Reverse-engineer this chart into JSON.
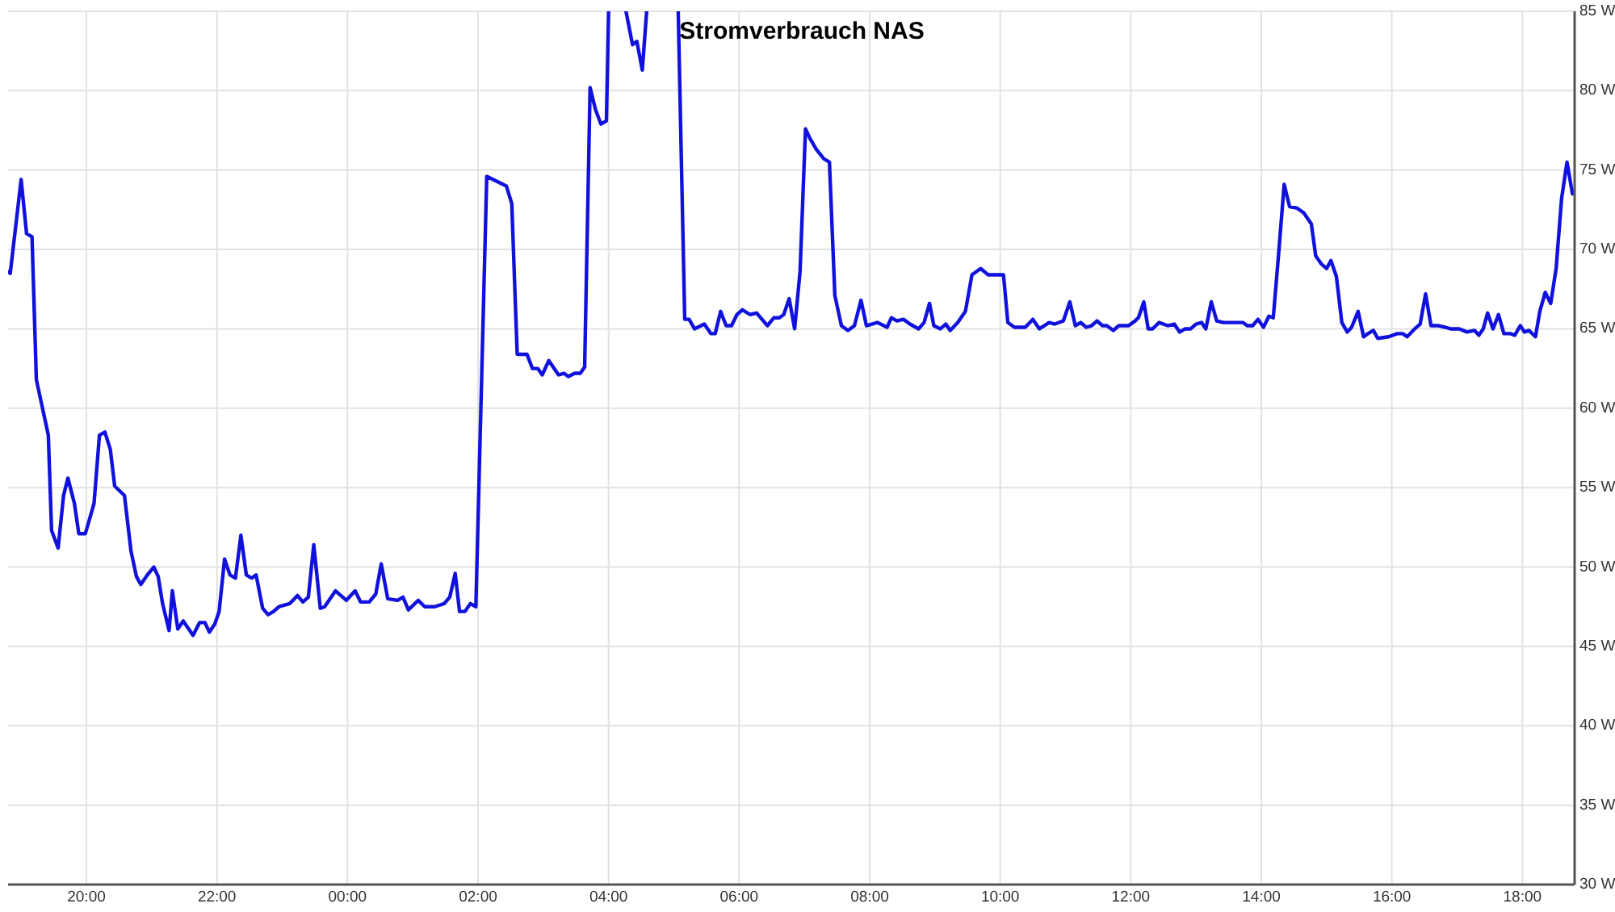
{
  "chart_data": {
    "type": "line",
    "title": "Stromverbrauch NAS",
    "x": [
      "--01-01T18:48",
      "--01-01T18:50",
      "--01-01T19:00",
      "--01-01T19:05",
      "--01-01T19:10",
      "--01-01T19:14",
      "--01-01T19:25",
      "--01-01T19:28",
      "--01-01T19:34",
      "--01-01T19:39",
      "--01-01T19:43",
      "--01-01T19:49",
      "--01-01T19:53",
      "--01-01T19:59",
      "--01-01T20:02",
      "--01-01T20:07",
      "--01-01T20:12",
      "--01-01T20:17",
      "--01-01T20:22",
      "--01-01T20:26",
      "--01-01T20:35",
      "--01-01T20:41",
      "--01-01T20:46",
      "--01-01T20:50",
      "--01-01T20:56",
      "--01-01T21:02",
      "--01-01T21:06",
      "--01-01T21:10",
      "--01-01T21:16",
      "--01-01T21:19",
      "--01-01T21:24",
      "--01-01T21:29",
      "--01-01T21:34",
      "--01-01T21:38",
      "--01-01T21:44",
      "--01-01T21:49",
      "--01-01T21:53",
      "--01-01T21:58",
      "--01-01T22:02",
      "--01-01T22:07",
      "--01-01T22:12",
      "--01-01T22:17",
      "--01-01T22:22",
      "--01-01T22:27",
      "--01-01T22:32",
      "--01-01T22:36",
      "--01-01T22:42",
      "--01-01T22:47",
      "--01-01T22:52",
      "--01-01T22:57",
      "--01-01T23:07",
      "--01-01T23:14",
      "--01-01T23:19",
      "--01-01T23:24",
      "--01-01T23:29",
      "--01-01T23:35",
      "--01-01T23:39",
      "--01-01T23:49",
      "--01-01T23:59",
      "--01-02T00:07",
      "--01-02T00:12",
      "--01-02T00:20",
      "--01-02T00:26",
      "--01-02T00:31",
      "--01-02T00:37",
      "--01-02T00:46",
      "--01-02T00:51",
      "--01-02T00:56",
      "--01-02T01:05",
      "--01-02T01:11",
      "--01-02T01:20",
      "--01-02T01:29",
      "--01-02T01:34",
      "--01-02T01:39",
      "--01-02T01:43",
      "--01-02T01:48",
      "--01-02T01:53",
      "--01-02T01:58",
      "--01-02T02:08",
      "--01-02T02:26",
      "--01-02T02:31",
      "--01-02T02:36",
      "--01-02T02:45",
      "--01-02T02:50",
      "--01-02T02:55",
      "--01-02T02:59",
      "--01-02T03:05",
      "--01-02T03:14",
      "--01-02T03:19",
      "--01-02T03:23",
      "--01-02T03:29",
      "--01-02T03:34",
      "--01-02T03:38",
      "--01-02T03:43",
      "--01-02T03:48",
      "--01-02T03:53",
      "--01-02T03:58",
      "--01-02T04:00",
      "--01-02T04:06",
      "--01-02T04:16",
      "--01-02T04:22",
      "--01-02T04:26",
      "--01-02T04:31",
      "--01-02T04:35",
      "--01-02T04:48",
      "--01-02T05:04",
      "--01-02T05:10",
      "--01-02T05:14",
      "--01-02T05:19",
      "--01-02T05:28",
      "--01-02T05:34",
      "--01-02T05:38",
      "--01-02T05:43",
      "--01-02T05:48",
      "--01-02T05:53",
      "--01-02T05:58",
      "--01-02T06:03",
      "--01-02T06:10",
      "--01-02T06:16",
      "--01-02T06:21",
      "--01-02T06:26",
      "--01-02T06:32",
      "--01-02T06:37",
      "--01-02T06:41",
      "--01-02T06:46",
      "--01-02T06:51",
      "--01-02T06:56",
      "--01-02T07:01",
      "--01-02T07:05",
      "--01-02T07:11",
      "--01-02T07:18",
      "--01-02T07:23",
      "--01-02T07:28",
      "--01-02T07:34",
      "--01-02T07:40",
      "--01-02T07:46",
      "--01-02T07:52",
      "--01-02T07:57",
      "--01-02T08:07",
      "--01-02T08:16",
      "--01-02T08:20",
      "--01-02T08:25",
      "--01-02T08:31",
      "--01-02T08:37",
      "--01-02T08:45",
      "--01-02T08:50",
      "--01-02T08:55",
      "--01-02T08:59",
      "--01-02T09:05",
      "--01-02T09:10",
      "--01-02T09:14",
      "--01-02T09:21",
      "--01-02T09:28",
      "--01-02T09:34",
      "--01-02T09:42",
      "--01-02T09:49",
      "--01-02T10:03",
      "--01-02T10:07",
      "--01-02T10:13",
      "--01-02T10:23",
      "--01-02T10:30",
      "--01-02T10:36",
      "--01-02T10:45",
      "--01-02T10:50",
      "--01-02T10:58",
      "--01-02T11:04",
      "--01-02T11:09",
      "--01-02T11:14",
      "--01-02T11:19",
      "--01-02T11:24",
      "--01-02T11:29",
      "--01-02T11:34",
      "--01-02T11:38",
      "--01-02T11:44",
      "--01-02T11:49",
      "--01-02T11:58",
      "--01-02T12:04",
      "--01-02T12:07",
      "--01-02T12:12",
      "--01-02T12:16",
      "--01-02T12:20",
      "--01-02T12:26",
      "--01-02T12:34",
      "--01-02T12:40",
      "--01-02T12:45",
      "--01-02T12:50",
      "--01-02T12:55",
      "--01-02T13:00",
      "--01-02T13:05",
      "--01-02T13:09",
      "--01-02T13:14",
      "--01-02T13:19",
      "--01-02T13:25",
      "--01-02T13:36",
      "--01-02T13:43",
      "--01-02T13:47",
      "--01-02T13:52",
      "--01-02T13:57",
      "--01-02T14:02",
      "--01-02T14:07",
      "--01-02T14:11",
      "--01-02T14:16",
      "--01-02T14:21",
      "--01-02T14:26",
      "--01-02T14:33",
      "--01-02T14:39",
      "--01-02T14:46",
      "--01-02T14:50",
      "--01-02T14:55",
      "--01-02T15:00",
      "--01-02T15:04",
      "--01-02T15:09",
      "--01-02T15:14",
      "--01-02T15:19",
      "--01-02T15:23",
      "--01-02T15:29",
      "--01-02T15:34",
      "--01-02T15:38",
      "--01-02T15:43",
      "--01-02T15:47",
      "--01-02T15:57",
      "--01-02T16:05",
      "--01-02T16:10",
      "--01-02T16:14",
      "--01-02T16:21",
      "--01-02T16:26",
      "--01-02T16:31",
      "--01-02T16:36",
      "--01-02T16:43",
      "--01-02T16:49",
      "--01-02T16:54",
      "--01-02T17:02",
      "--01-02T17:09",
      "--01-02T17:16",
      "--01-02T17:20",
      "--01-02T17:24",
      "--01-02T17:28",
      "--01-02T17:33",
      "--01-02T17:38",
      "--01-02T17:43",
      "--01-02T17:49",
      "--01-02T17:53",
      "--01-02T17:58",
      "--01-02T18:02",
      "--01-02T18:06",
      "--01-02T18:12",
      "--01-02T18:16",
      "--01-02T18:21",
      "--01-02T18:26",
      "--01-02T18:31",
      "--01-02T18:36",
      "--01-02T18:41",
      "--01-02T18:46"
    ],
    "series": [
      {
        "color": "#1111dd",
        "values": [
          68.6,
          68.5,
          74.4,
          71.0,
          70.8,
          61.8,
          58.3,
          52.3,
          51.2,
          54.5,
          55.6,
          54.0,
          52.1,
          52.1,
          52.8,
          54.0,
          58.3,
          58.5,
          57.4,
          55.1,
          54.5,
          51.0,
          49.4,
          48.9,
          49.5,
          50.0,
          49.4,
          47.7,
          46.0,
          48.5,
          46.1,
          46.6,
          46.1,
          45.7,
          46.5,
          46.5,
          45.9,
          46.4,
          47.2,
          50.5,
          49.5,
          49.3,
          52.0,
          49.5,
          49.3,
          49.5,
          47.4,
          47.0,
          47.2,
          47.5,
          47.7,
          48.2,
          47.8,
          48.1,
          51.4,
          47.4,
          47.5,
          48.5,
          47.9,
          48.5,
          47.8,
          47.8,
          48.3,
          50.2,
          48.0,
          47.9,
          48.1,
          47.3,
          47.9,
          47.5,
          47.5,
          47.7,
          48.1,
          49.6,
          47.2,
          47.2,
          47.7,
          47.5,
          74.6,
          74.0,
          72.9,
          63.4,
          63.4,
          62.5,
          62.5,
          62.1,
          63.0,
          62.1,
          62.2,
          62.0,
          62.2,
          62.2,
          62.6,
          80.2,
          78.8,
          77.9,
          78.1,
          85,
          null,
          85,
          82.9,
          83.1,
          81.3,
          85,
          null,
          85,
          65.6,
          65.6,
          65.0,
          65.3,
          64.7,
          64.7,
          66.1,
          65.2,
          65.2,
          65.9,
          66.2,
          65.9,
          66.0,
          65.6,
          65.2,
          65.7,
          65.7,
          65.9,
          66.9,
          65.0,
          68.6,
          77.6,
          77.0,
          76.3,
          75.7,
          75.5,
          67.1,
          65.2,
          64.9,
          65.2,
          66.8,
          65.2,
          65.4,
          65.1,
          65.7,
          65.5,
          65.6,
          65.3,
          65.0,
          65.4,
          66.6,
          65.2,
          65.0,
          65.3,
          64.9,
          65.4,
          66.1,
          68.4,
          68.8,
          68.4,
          68.4,
          65.4,
          65.1,
          65.1,
          65.6,
          65.0,
          65.4,
          65.3,
          65.5,
          66.7,
          65.2,
          65.4,
          65.1,
          65.2,
          65.5,
          65.2,
          65.2,
          64.9,
          65.2,
          65.2,
          65.5,
          65.7,
          66.7,
          65.0,
          65.0,
          65.4,
          65.2,
          65.3,
          64.8,
          65.0,
          65.0,
          65.3,
          65.4,
          65.0,
          66.7,
          65.5,
          65.4,
          65.4,
          65.4,
          65.2,
          65.2,
          65.6,
          65.1,
          65.8,
          65.7,
          69.8,
          74.1,
          72.7,
          72.6,
          72.3,
          71.6,
          69.6,
          69.1,
          68.8,
          69.3,
          68.3,
          65.4,
          64.8,
          65.1,
          66.1,
          64.5,
          64.7,
          64.9,
          64.4,
          64.5,
          64.7,
          64.7,
          64.5,
          65.0,
          65.3,
          67.2,
          65.2,
          65.2,
          65.1,
          65.0,
          65.0,
          64.8,
          64.9,
          64.6,
          65.0,
          66.0,
          65.0,
          65.9,
          64.7,
          64.7,
          64.6,
          65.2,
          64.8,
          64.9,
          64.5,
          66.1,
          67.3,
          66.6,
          68.8,
          73.2,
          75.5,
          73.5
        ]
      }
    ],
    "xlim": [
      "--01-01T18:48",
      "--01-02T18:48"
    ],
    "xticks": [
      {
        "value": "--01-01T20:00",
        "label": "20:00"
      },
      {
        "value": "--01-01T22:00",
        "label": "22:00"
      },
      {
        "value": "--01-02T00:00",
        "label": "00:00"
      },
      {
        "value": "--01-02T02:00",
        "label": "02:00"
      },
      {
        "value": "--01-02T04:00",
        "label": "04:00"
      },
      {
        "value": "--01-02T06:00",
        "label": "06:00"
      },
      {
        "value": "--01-02T08:00",
        "label": "08:00"
      },
      {
        "value": "--01-02T10:00",
        "label": "10:00"
      },
      {
        "value": "--01-02T12:00",
        "label": "12:00"
      },
      {
        "value": "--01-02T14:00",
        "label": "14:00"
      },
      {
        "value": "--01-02T16:00",
        "label": "16:00"
      },
      {
        "value": "--01-02T18:00",
        "label": "18:00"
      }
    ],
    "ylim": [
      30,
      85
    ],
    "yticks": [
      {
        "value": 30,
        "label": "30 W"
      },
      {
        "value": 35,
        "label": "35 W"
      },
      {
        "value": 40,
        "label": "40 W"
      },
      {
        "value": 45,
        "label": "45 W"
      },
      {
        "value": 50,
        "label": "50 W"
      },
      {
        "value": 55,
        "label": "55 W"
      },
      {
        "value": 60,
        "label": "60 W"
      },
      {
        "value": 65,
        "label": "65 W"
      },
      {
        "value": 70,
        "label": "70 W"
      },
      {
        "value": 75,
        "label": "75 W"
      },
      {
        "value": 80,
        "label": "80 W"
      },
      {
        "value": 85,
        "label": "85 W"
      }
    ],
    "grid": true
  }
}
